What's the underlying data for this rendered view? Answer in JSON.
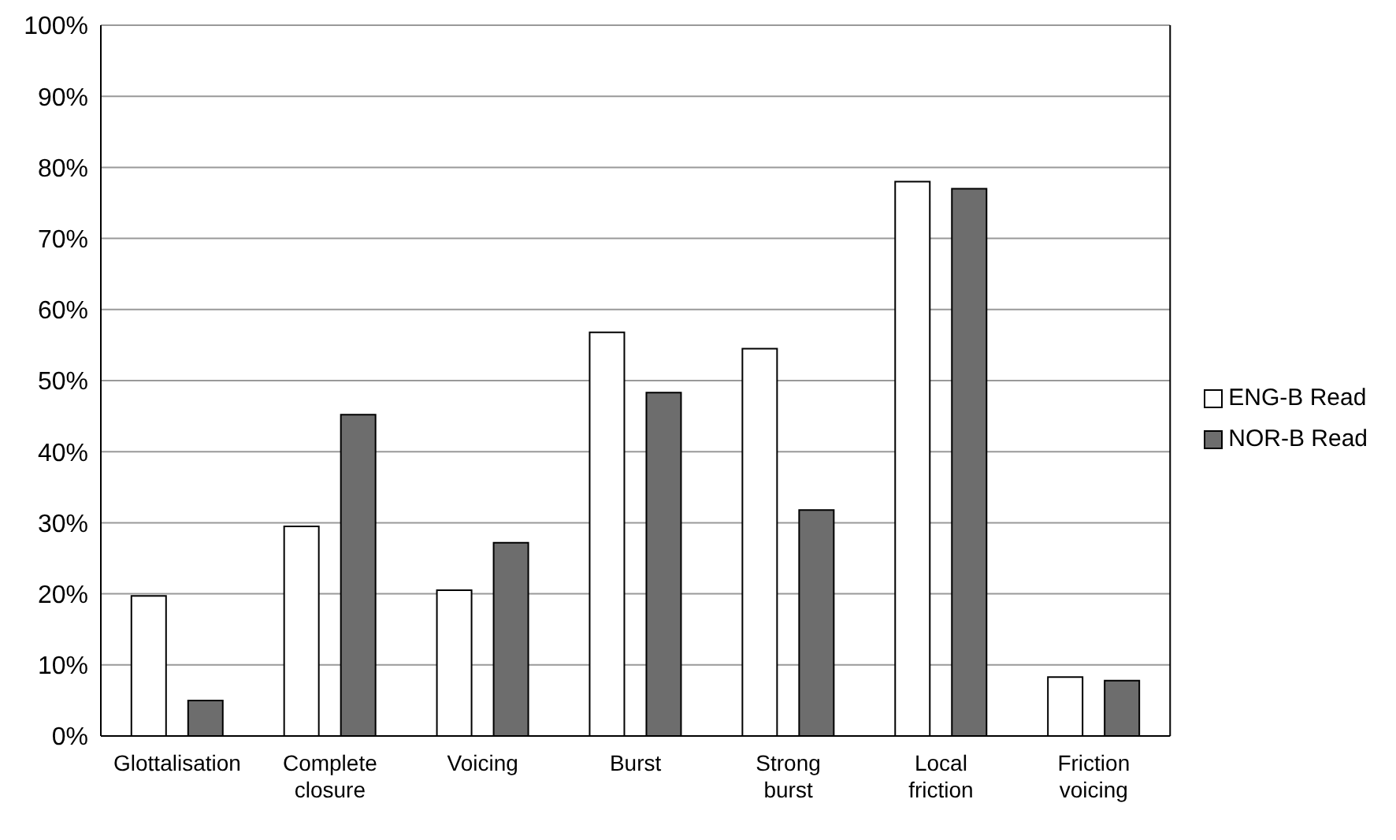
{
  "chart_data": {
    "type": "bar",
    "categories": [
      "Glottalisation",
      "Complete closure",
      "Voicing",
      "Burst",
      "Strong burst",
      "Local friction",
      "Friction voicing"
    ],
    "series": [
      {
        "name": "ENG-B Read",
        "color": "#ffffff",
        "values": [
          19.7,
          29.5,
          20.5,
          56.8,
          54.5,
          78,
          8.3
        ]
      },
      {
        "name": "NOR-B Read",
        "color": "#6d6d6d",
        "values": [
          5,
          45.2,
          27.2,
          48.3,
          31.8,
          77,
          7.8
        ]
      }
    ],
    "ylim": [
      0,
      100
    ],
    "yticks": [
      {
        "value": 0,
        "label": "0%"
      },
      {
        "value": 10,
        "label": "10%"
      },
      {
        "value": 20,
        "label": "20%"
      },
      {
        "value": 30,
        "label": "30%"
      },
      {
        "value": 40,
        "label": "40%"
      },
      {
        "value": 50,
        "label": "50%"
      },
      {
        "value": 60,
        "label": "60%"
      },
      {
        "value": 70,
        "label": "70%"
      },
      {
        "value": 80,
        "label": "80%"
      },
      {
        "value": 90,
        "label": "90%"
      },
      {
        "value": 100,
        "label": "100%"
      }
    ],
    "grid": "y",
    "legend": "right",
    "marker": "square"
  }
}
